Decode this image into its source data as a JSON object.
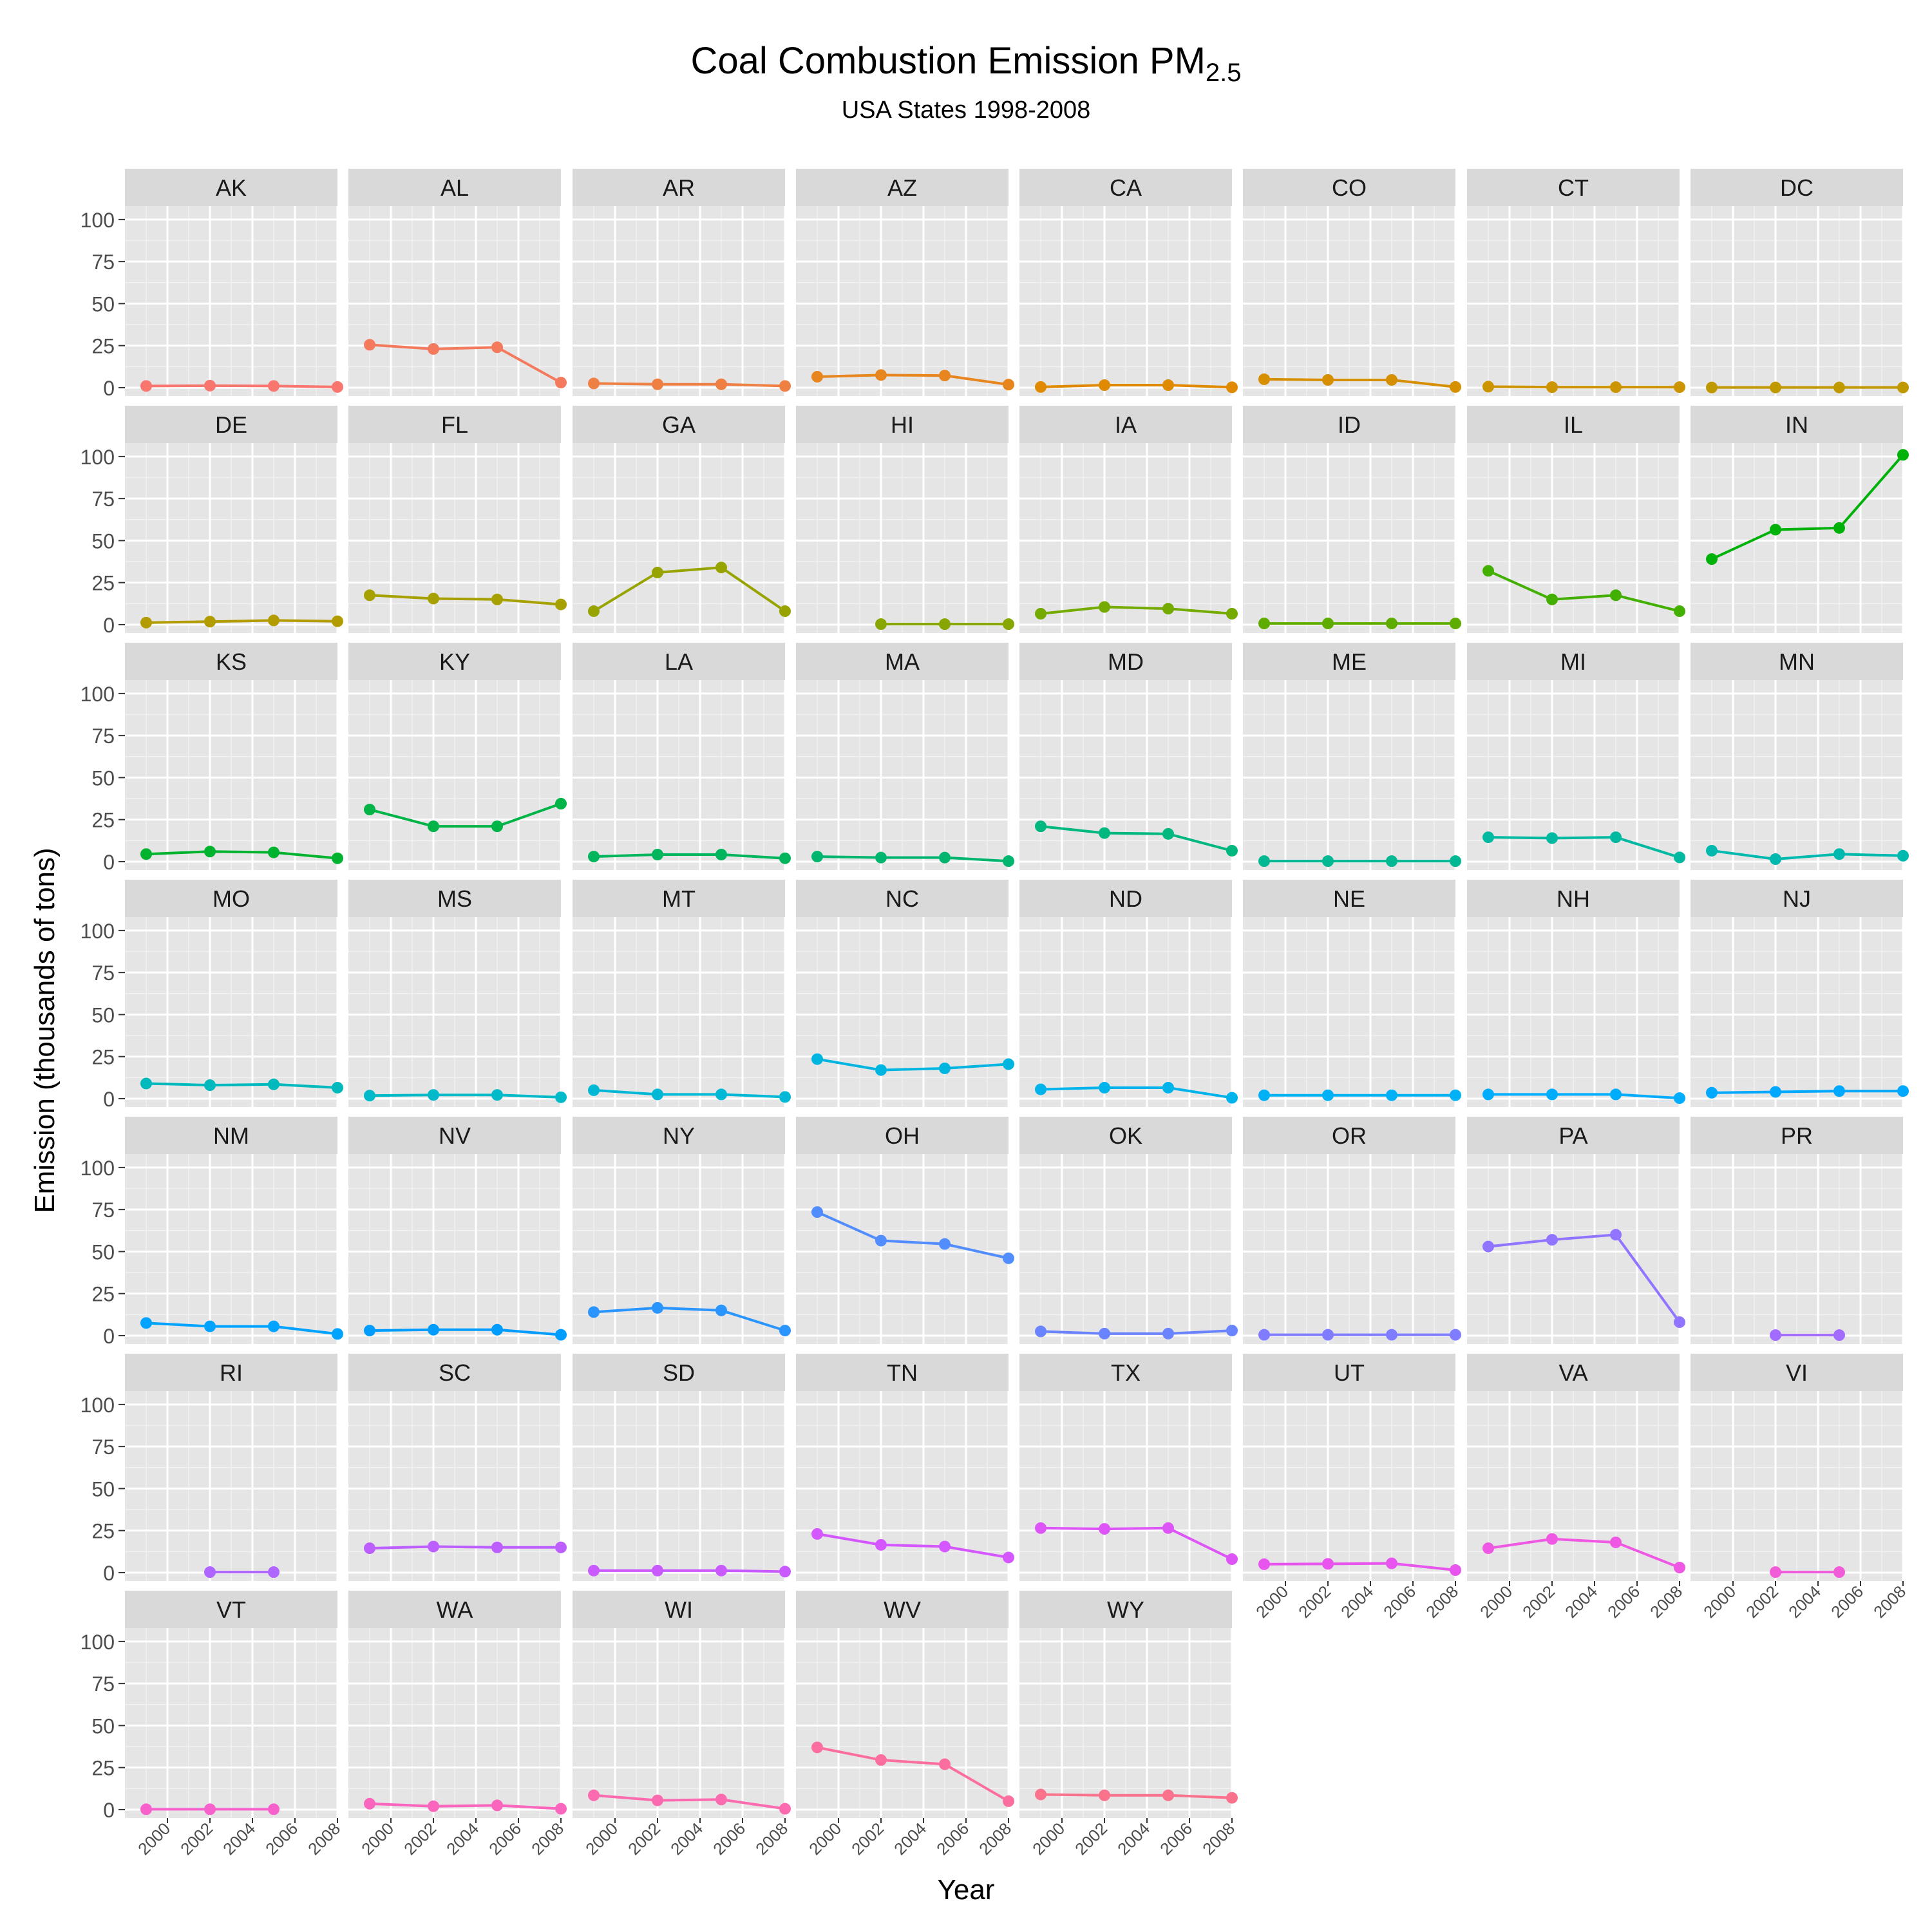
{
  "chart_data": {
    "type": "line",
    "title": "Coal Combustion Emission PM",
    "title_subscript": "2.5",
    "subtitle": "USA States 1998-2008",
    "xlabel": "Year",
    "ylabel": "Emission (thousands of tons)",
    "x": [
      1999,
      2002,
      2005,
      2008
    ],
    "xlim": [
      1998,
      2008
    ],
    "ylim": [
      -5,
      108
    ],
    "x_tick_labels": [
      "2000",
      "2002",
      "2004",
      "2006",
      "2008"
    ],
    "y_tick_labels": [
      "0",
      "25",
      "50",
      "75",
      "100"
    ],
    "grid": true,
    "legend": "none",
    "facet_columns": 8,
    "panel_background": "#E5E5E5",
    "strip_background": "#D9D9D9",
    "series": [
      {
        "name": "AK",
        "color": "#F8766D",
        "values": [
          1,
          1.2,
          1,
          0.4
        ]
      },
      {
        "name": "AL",
        "color": "#F47A5D",
        "values": [
          25.5,
          23,
          24,
          3
        ]
      },
      {
        "name": "AR",
        "color": "#EE8044",
        "values": [
          2.5,
          2,
          2,
          1
        ]
      },
      {
        "name": "AZ",
        "color": "#E7851E",
        "values": [
          6.5,
          7.5,
          7.2,
          1.8
        ]
      },
      {
        "name": "CA",
        "color": "#DF8A00",
        "values": [
          0.4,
          1.5,
          1.5,
          0.2
        ]
      },
      {
        "name": "CO",
        "color": "#D58F00",
        "values": [
          5,
          4.6,
          4.6,
          0.4
        ]
      },
      {
        "name": "CT",
        "color": "#CB9400",
        "values": [
          0.6,
          0.3,
          0.3,
          0.3
        ]
      },
      {
        "name": "DC",
        "color": "#C09800",
        "values": [
          0.1,
          0.1,
          0.1,
          0.1
        ]
      },
      {
        "name": "DE",
        "color": "#B39C00",
        "values": [
          1.2,
          1.8,
          2.5,
          2
        ]
      },
      {
        "name": "FL",
        "color": "#A6A000",
        "values": [
          17.5,
          15.5,
          15,
          12
        ]
      },
      {
        "name": "GA",
        "color": "#97A400",
        "values": [
          8,
          31,
          34,
          8
        ]
      },
      {
        "name": "HI",
        "color": "#87A700",
        "values": [
          null,
          0.3,
          0.3,
          0.3
        ]
      },
      {
        "name": "IA",
        "color": "#75AA00",
        "values": [
          6.5,
          10.5,
          9.5,
          6.5
        ]
      },
      {
        "name": "ID",
        "color": "#5FAC00",
        "values": [
          0.7,
          0.7,
          0.7,
          0.7
        ]
      },
      {
        "name": "IL",
        "color": "#43AF00",
        "values": [
          32,
          15,
          17.5,
          8
        ]
      },
      {
        "name": "IN",
        "color": "#00B109",
        "values": [
          39,
          56.5,
          57.5,
          101
        ]
      },
      {
        "name": "KS",
        "color": "#00B32E",
        "values": [
          4.5,
          6,
          5.5,
          2
        ]
      },
      {
        "name": "KY",
        "color": "#00B447",
        "values": [
          31,
          21,
          21,
          34.5
        ]
      },
      {
        "name": "LA",
        "color": "#00B55C",
        "values": [
          3,
          4.2,
          4.2,
          2
        ]
      },
      {
        "name": "MA",
        "color": "#00B66F",
        "values": [
          3,
          2.4,
          2.4,
          0.3
        ]
      },
      {
        "name": "MD",
        "color": "#00B780",
        "values": [
          21,
          17,
          16.5,
          6.5
        ]
      },
      {
        "name": "ME",
        "color": "#00B891",
        "values": [
          0.3,
          0.3,
          0.3,
          0.3
        ]
      },
      {
        "name": "MI",
        "color": "#00B9A0",
        "values": [
          14.5,
          14,
          14.5,
          2.5
        ]
      },
      {
        "name": "MN",
        "color": "#00B9AE",
        "values": [
          6.5,
          1.5,
          4.5,
          3.5
        ]
      },
      {
        "name": "MO",
        "color": "#00B9BC",
        "values": [
          9,
          8,
          8.5,
          6.5
        ]
      },
      {
        "name": "MS",
        "color": "#00B9C9",
        "values": [
          1.8,
          2.2,
          2.2,
          0.8
        ]
      },
      {
        "name": "MT",
        "color": "#00B8D5",
        "values": [
          5,
          2.5,
          2.5,
          1
        ]
      },
      {
        "name": "NC",
        "color": "#00B6E1",
        "values": [
          23.5,
          17,
          18,
          20.5
        ]
      },
      {
        "name": "ND",
        "color": "#00B4EB",
        "values": [
          5.5,
          6.5,
          6.5,
          0.5
        ]
      },
      {
        "name": "NE",
        "color": "#00B1F5",
        "values": [
          2,
          2,
          2,
          2
        ]
      },
      {
        "name": "NH",
        "color": "#00ADFD",
        "values": [
          2.5,
          2.5,
          2.5,
          0.3
        ]
      },
      {
        "name": "NJ",
        "color": "#00A8FF",
        "values": [
          3.5,
          4,
          4.5,
          4.5
        ]
      },
      {
        "name": "NM",
        "color": "#00A3FF",
        "values": [
          7.5,
          5.5,
          5.5,
          1
        ]
      },
      {
        "name": "NV",
        "color": "#009DFF",
        "values": [
          3,
          3.5,
          3.5,
          0.5
        ]
      },
      {
        "name": "NY",
        "color": "#2B95FF",
        "values": [
          14,
          16.5,
          15,
          3
        ]
      },
      {
        "name": "OH",
        "color": "#528DFF",
        "values": [
          73.5,
          56.5,
          54.5,
          46
        ]
      },
      {
        "name": "OK",
        "color": "#6A84FF",
        "values": [
          2.5,
          1.2,
          1.2,
          3
        ]
      },
      {
        "name": "OR",
        "color": "#7F7CFF",
        "values": [
          0.5,
          0.5,
          0.5,
          0.5
        ]
      },
      {
        "name": "PA",
        "color": "#9174FF",
        "values": [
          53,
          57,
          60,
          8
        ]
      },
      {
        "name": "PR",
        "color": "#A16CFF",
        "values": [
          null,
          0.3,
          0.3,
          null
        ]
      },
      {
        "name": "RI",
        "color": "#AF65FF",
        "values": [
          null,
          0.3,
          0.3,
          null
        ]
      },
      {
        "name": "SC",
        "color": "#BD5EFF",
        "values": [
          14.5,
          15.5,
          15,
          15
        ]
      },
      {
        "name": "SD",
        "color": "#C95AFF",
        "values": [
          1.2,
          1.2,
          1.2,
          0.6
        ]
      },
      {
        "name": "TN",
        "color": "#D457FF",
        "values": [
          23,
          16.5,
          15.5,
          9
        ]
      },
      {
        "name": "TX",
        "color": "#DE55F7",
        "values": [
          26.5,
          26,
          26.5,
          8
        ]
      },
      {
        "name": "UT",
        "color": "#E755EE",
        "values": [
          5,
          5.2,
          5.5,
          1.5
        ]
      },
      {
        "name": "VA",
        "color": "#EE58E3",
        "values": [
          14.5,
          20,
          18,
          3
        ]
      },
      {
        "name": "VI",
        "color": "#F35CD8",
        "values": [
          null,
          0.3,
          0.3,
          null
        ]
      },
      {
        "name": "VT",
        "color": "#F761CB",
        "values": [
          0.2,
          0.2,
          0.2,
          null
        ]
      },
      {
        "name": "WA",
        "color": "#FA65BE",
        "values": [
          3.5,
          2,
          2.5,
          0.5
        ]
      },
      {
        "name": "WI",
        "color": "#FC6AB0",
        "values": [
          8.5,
          5.5,
          6,
          0.5
        ]
      },
      {
        "name": "WV",
        "color": "#FC6E9F",
        "values": [
          37,
          29.5,
          27,
          5
        ]
      },
      {
        "name": "WY",
        "color": "#FB728D",
        "values": [
          9,
          8.5,
          8.5,
          7
        ]
      }
    ]
  }
}
